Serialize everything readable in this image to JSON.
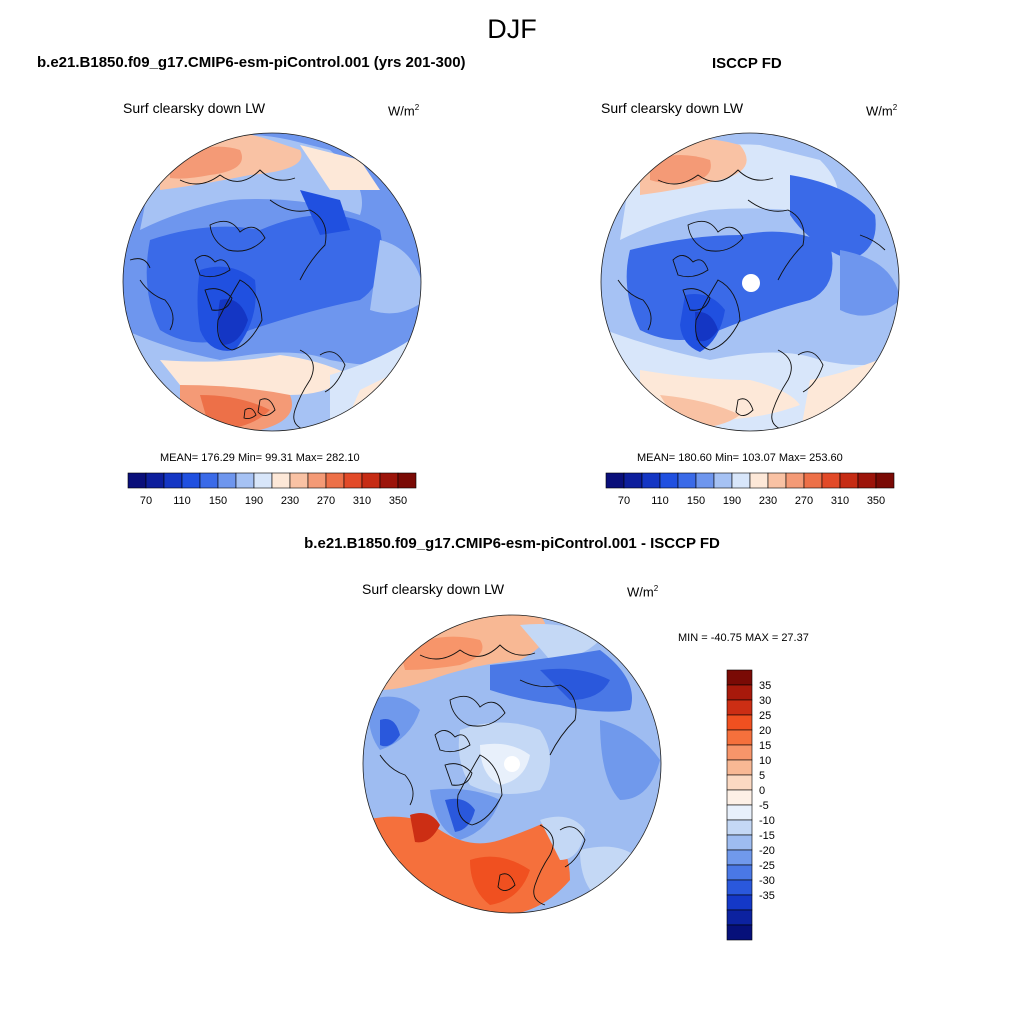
{
  "main_title": "DJF",
  "panels": [
    {
      "title": "b.e21.B1850.f09_g17.CMIP6-esm-piControl.001 (yrs 201-300)",
      "variable": "Surf clearsky down LW",
      "units_base": "W/m",
      "units_exp": "2",
      "stats": "MEAN= 176.29  Min=  99.31  Max= 282.10"
    },
    {
      "title": "ISCCP FD",
      "variable": "Surf clearsky down LW",
      "units_base": "W/m",
      "units_exp": "2",
      "stats": "MEAN= 180.60  Min= 103.07  Max= 253.60"
    },
    {
      "title": "b.e21.B1850.f09_g17.CMIP6-esm-piControl.001 - ISCCP FD",
      "variable": "Surf clearsky down LW",
      "units_base": "W/m",
      "units_exp": "2",
      "stats": "MIN = -40.75 MAX =  27.37"
    }
  ],
  "colorbar_abs": {
    "colors": [
      "#0a0f7a",
      "#0d1e9c",
      "#1436c4",
      "#2050e0",
      "#3a6ae8",
      "#6e96ee",
      "#a6c2f4",
      "#d8e6fa",
      "#fde8d8",
      "#f9c2a4",
      "#f49a76",
      "#ed7048",
      "#e24a28",
      "#c62c14",
      "#9c140a",
      "#7a0a05"
    ],
    "ticks": [
      "70",
      "110",
      "150",
      "190",
      "230",
      "270",
      "310",
      "350"
    ]
  },
  "colorbar_diff": {
    "colors": [
      "#7a0a05",
      "#a8190b",
      "#cc2e14",
      "#f05020",
      "#f5703c",
      "#f7956a",
      "#f8b894",
      "#fbd9c2",
      "#fdf0e6",
      "#e8f0fb",
      "#c4d8f5",
      "#9ebcf1",
      "#7099ec",
      "#4a78e6",
      "#2a58dc",
      "#1438c8",
      "#0c22a0",
      "#06107a"
    ],
    "ticks": [
      "35",
      "30",
      "25",
      "20",
      "15",
      "10",
      "5",
      "0",
      "-5",
      "-10",
      "-15",
      "-20",
      "-25",
      "-30",
      "-35"
    ]
  },
  "chart_data": [
    {
      "type": "heatmap",
      "title": "b.e21.B1850.f09_g17.CMIP6-esm-piControl.001 (yrs 201-300)",
      "variable": "Surf clearsky down LW",
      "units": "W/m2",
      "mean": 176.29,
      "min": 99.31,
      "max": 282.1,
      "levels": [
        70,
        90,
        110,
        130,
        150,
        170,
        190,
        210,
        230,
        250,
        270,
        290,
        310,
        330,
        350
      ]
    },
    {
      "type": "heatmap",
      "title": "ISCCP FD",
      "variable": "Surf clearsky down LW",
      "units": "W/m2",
      "mean": 180.6,
      "min": 103.07,
      "max": 253.6,
      "levels": [
        70,
        90,
        110,
        130,
        150,
        170,
        190,
        210,
        230,
        250,
        270,
        290,
        310,
        330,
        350
      ]
    },
    {
      "type": "heatmap",
      "title": "b.e21.B1850.f09_g17.CMIP6-esm-piControl.001 - ISCCP FD",
      "variable": "Surf clearsky down LW",
      "units": "W/m2",
      "min": -40.75,
      "max": 27.37,
      "levels": [
        35,
        30,
        25,
        20,
        15,
        10,
        5,
        0,
        -5,
        -10,
        -15,
        -20,
        -25,
        -30,
        -35
      ]
    }
  ]
}
